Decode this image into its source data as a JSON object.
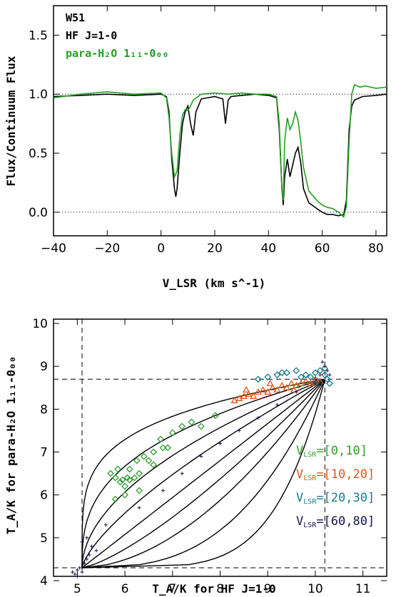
{
  "chart_data": [
    {
      "type": "line",
      "panel": "top",
      "xlabel": "V_LSR (km s^-1)",
      "ylabel": "Flux/Continuum Flux",
      "xlim": [
        -40,
        84
      ],
      "ylim": [
        -0.2,
        1.75
      ],
      "xticks": [
        -40,
        -20,
        0,
        20,
        40,
        60,
        80
      ],
      "xtick_labels": [
        "−40",
        "−20",
        "0",
        "20",
        "40",
        "60",
        "80"
      ],
      "yticks": [
        0.0,
        0.5,
        1.0,
        1.5
      ],
      "ytick_labels": [
        "0.0",
        "0.5",
        "1.0",
        "1.5"
      ],
      "reference_lines": [
        1.0,
        0.0
      ],
      "annotations": [
        "W51",
        "HF J=1-0",
        "para-H₂O 1₁₁-0₀₀"
      ],
      "series": [
        {
          "name": "HF J=1-0",
          "color": "#000000",
          "points": [
            [
              -40,
              0.98
            ],
            [
              -30,
              0.99
            ],
            [
              -20,
              1.0
            ],
            [
              -10,
              0.99
            ],
            [
              0,
              1.0
            ],
            [
              2,
              0.98
            ],
            [
              3,
              0.85
            ],
            [
              4,
              0.45
            ],
            [
              5,
              0.2
            ],
            [
              5.5,
              0.13
            ],
            [
              6,
              0.2
            ],
            [
              7,
              0.5
            ],
            [
              8,
              0.75
            ],
            [
              9,
              0.85
            ],
            [
              10,
              0.9
            ],
            [
              11,
              0.75
            ],
            [
              12,
              0.65
            ],
            [
              13,
              0.85
            ],
            [
              15,
              0.96
            ],
            [
              20,
              0.98
            ],
            [
              23,
              0.96
            ],
            [
              24,
              0.75
            ],
            [
              25,
              0.95
            ],
            [
              26,
              0.98
            ],
            [
              30,
              0.99
            ],
            [
              35,
              1.0
            ],
            [
              40,
              0.99
            ],
            [
              43,
              0.97
            ],
            [
              44,
              0.7
            ],
            [
              45,
              0.2
            ],
            [
              45.5,
              0.06
            ],
            [
              46,
              0.3
            ],
            [
              47,
              0.45
            ],
            [
              48,
              0.3
            ],
            [
              49,
              0.4
            ],
            [
              50,
              0.5
            ],
            [
              51,
              0.55
            ],
            [
              52,
              0.42
            ],
            [
              53,
              0.2
            ],
            [
              55,
              0.08
            ],
            [
              58,
              0.03
            ],
            [
              60,
              0.0
            ],
            [
              62,
              -0.02
            ],
            [
              64,
              -0.02
            ],
            [
              66,
              -0.03
            ],
            [
              68,
              -0.02
            ],
            [
              69,
              0.1
            ],
            [
              70,
              0.7
            ],
            [
              71,
              0.9
            ],
            [
              72,
              0.95
            ],
            [
              75,
              0.98
            ],
            [
              80,
              0.99
            ],
            [
              84,
              1.0
            ]
          ]
        },
        {
          "name": "para-H₂O 1₁₁-0₀₀",
          "color": "#22a022",
          "points": [
            [
              -40,
              0.97
            ],
            [
              -30,
              1.0
            ],
            [
              -20,
              1.02
            ],
            [
              -10,
              1.0
            ],
            [
              0,
              1.01
            ],
            [
              2,
              0.97
            ],
            [
              3,
              0.8
            ],
            [
              4,
              0.5
            ],
            [
              5,
              0.3
            ],
            [
              6,
              0.35
            ],
            [
              7,
              0.65
            ],
            [
              8,
              0.82
            ],
            [
              9,
              0.87
            ],
            [
              10,
              0.86
            ],
            [
              11,
              0.9
            ],
            [
              12,
              0.95
            ],
            [
              15,
              1.0
            ],
            [
              20,
              1.01
            ],
            [
              25,
              1.0
            ],
            [
              30,
              1.01
            ],
            [
              35,
              1.0
            ],
            [
              40,
              1.0
            ],
            [
              43,
              0.98
            ],
            [
              44,
              0.75
            ],
            [
              45,
              0.2
            ],
            [
              45.5,
              0.1
            ],
            [
              46,
              0.6
            ],
            [
              47,
              0.8
            ],
            [
              48,
              0.7
            ],
            [
              49,
              0.75
            ],
            [
              50,
              0.85
            ],
            [
              51,
              0.78
            ],
            [
              52,
              0.6
            ],
            [
              53,
              0.38
            ],
            [
              55,
              0.18
            ],
            [
              58,
              0.1
            ],
            [
              60,
              0.06
            ],
            [
              62,
              0.04
            ],
            [
              64,
              0.03
            ],
            [
              66,
              0.0
            ],
            [
              68,
              -0.04
            ],
            [
              69,
              0.05
            ],
            [
              70,
              0.6
            ],
            [
              71,
              1.0
            ],
            [
              72,
              1.08
            ],
            [
              74,
              1.06
            ],
            [
              76,
              1.07
            ],
            [
              80,
              1.05
            ],
            [
              84,
              1.06
            ]
          ]
        }
      ]
    },
    {
      "type": "scatter",
      "panel": "bottom",
      "xlabel": "T_A/K for HF J=1-0",
      "ylabel": "T_A/K for para-H₂O 1₁₁-0₀₀",
      "xlim": [
        4.5,
        11.5
      ],
      "ylim": [
        4.1,
        10.1
      ],
      "xticks": [
        5,
        6,
        7,
        8,
        9,
        10,
        11
      ],
      "yticks": [
        4,
        5,
        6,
        7,
        8,
        9,
        10
      ],
      "reference_lines": {
        "vertical": [
          5.1,
          10.2
        ],
        "horizontal": [
          4.3,
          8.7
        ]
      },
      "model_curves": {
        "from": [
          5.1,
          4.3
        ],
        "to": [
          10.2,
          8.7
        ],
        "exponents": [
          0.2,
          0.35,
          0.55,
          0.75,
          1.0,
          1.4,
          1.9,
          2.8,
          4.5
        ]
      },
      "legend_title_prefix": "V",
      "legend_subscript": "LSR",
      "series": [
        {
          "name": "[0,10]",
          "color": "#2ea02e",
          "marker": "diamond",
          "points": [
            [
              5.7,
              6.5
            ],
            [
              5.8,
              6.4
            ],
            [
              5.85,
              6.6
            ],
            [
              5.9,
              6.3
            ],
            [
              5.95,
              6.35
            ],
            [
              6.0,
              6.2
            ],
            [
              6.05,
              6.4
            ],
            [
              6.1,
              6.6
            ],
            [
              6.1,
              6.35
            ],
            [
              6.2,
              6.4
            ],
            [
              6.25,
              6.8
            ],
            [
              6.3,
              6.5
            ],
            [
              6.4,
              6.9
            ],
            [
              6.5,
              6.8
            ],
            [
              6.6,
              7.0
            ],
            [
              6.75,
              7.3
            ],
            [
              6.8,
              7.1
            ],
            [
              7.0,
              7.45
            ],
            [
              7.2,
              7.6
            ],
            [
              7.4,
              7.7
            ],
            [
              7.6,
              7.6
            ],
            [
              7.9,
              7.85
            ],
            [
              6.0,
              6.0
            ],
            [
              6.3,
              6.1
            ],
            [
              6.6,
              6.7
            ],
            [
              5.8,
              5.9
            ],
            [
              6.9,
              7.1
            ]
          ]
        },
        {
          "name": "[10,20]",
          "color": "#e0571a",
          "marker": "triangle",
          "points": [
            [
              8.3,
              8.2
            ],
            [
              8.4,
              8.25
            ],
            [
              8.5,
              8.3
            ],
            [
              8.6,
              8.35
            ],
            [
              8.7,
              8.3
            ],
            [
              8.8,
              8.4
            ],
            [
              8.9,
              8.45
            ],
            [
              9.0,
              8.4
            ],
            [
              9.1,
              8.5
            ],
            [
              9.2,
              8.45
            ],
            [
              9.3,
              8.55
            ],
            [
              9.4,
              8.5
            ],
            [
              9.5,
              8.6
            ],
            [
              9.6,
              8.55
            ],
            [
              9.7,
              8.6
            ],
            [
              9.8,
              8.65
            ],
            [
              9.9,
              8.6
            ],
            [
              10.0,
              8.7
            ],
            [
              10.1,
              8.65
            ],
            [
              8.55,
              8.45
            ],
            [
              9.05,
              8.6
            ],
            [
              9.55,
              8.45
            ]
          ]
        },
        {
          "name": "[20,30]",
          "color": "#1a7a8c",
          "marker": "diamond",
          "points": [
            [
              8.8,
              8.7
            ],
            [
              9.0,
              8.75
            ],
            [
              9.2,
              8.8
            ],
            [
              9.4,
              8.85
            ],
            [
              9.6,
              8.9
            ],
            [
              9.8,
              8.8
            ],
            [
              9.9,
              8.75
            ],
            [
              10.0,
              8.85
            ],
            [
              10.1,
              8.9
            ],
            [
              10.2,
              8.8
            ],
            [
              10.25,
              8.7
            ],
            [
              10.3,
              8.6
            ],
            [
              10.2,
              8.95
            ],
            [
              10.05,
              8.65
            ],
            [
              9.7,
              8.75
            ],
            [
              9.3,
              8.85
            ]
          ]
        },
        {
          "name": "[60,80]",
          "color": "#141452",
          "marker": "plus",
          "points": [
            [
              4.9,
              4.2
            ],
            [
              4.95,
              4.15
            ],
            [
              5.0,
              4.25
            ],
            [
              5.05,
              4.3
            ],
            [
              5.1,
              4.2
            ],
            [
              5.15,
              4.4
            ],
            [
              5.2,
              4.5
            ],
            [
              5.25,
              4.6
            ],
            [
              5.1,
              4.9
            ],
            [
              5.2,
              5.0
            ],
            [
              5.3,
              4.8
            ],
            [
              5.0,
              4.1
            ],
            [
              5.4,
              4.7
            ],
            [
              5.6,
              5.3
            ],
            [
              6.3,
              5.7
            ],
            [
              6.8,
              6.1
            ],
            [
              7.2,
              6.5
            ],
            [
              7.6,
              6.9
            ],
            [
              8.0,
              7.2
            ],
            [
              8.4,
              7.5
            ],
            [
              8.8,
              7.8
            ],
            [
              9.2,
              8.1
            ],
            [
              9.6,
              8.4
            ],
            [
              10.0,
              8.7
            ],
            [
              10.1,
              8.8
            ],
            [
              10.2,
              9.0
            ],
            [
              10.15,
              9.1
            ],
            [
              10.25,
              8.9
            ],
            [
              10.1,
              8.6
            ],
            [
              10.3,
              8.8
            ]
          ]
        }
      ]
    }
  ]
}
